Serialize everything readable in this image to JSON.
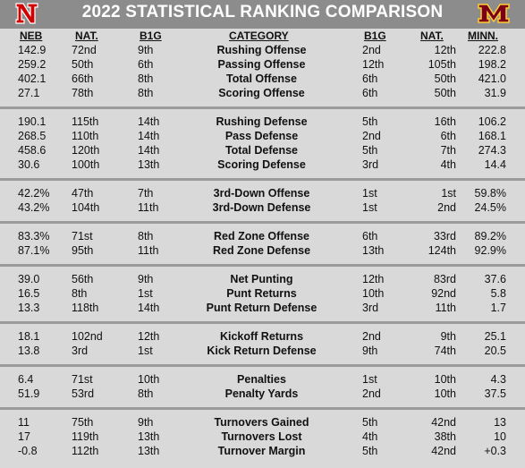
{
  "title": "2022 STATISTICAL RANKING COMPARISON",
  "logos": {
    "left": "nebraska-n-logo",
    "right": "minnesota-m-logo"
  },
  "colors": {
    "header_bg": "#8c8c8c",
    "nebraska_red": "#d00000",
    "minnesota_maroon": "#7a0019",
    "minnesota_gold": "#ffcc33",
    "body_bg": "#d9d9d9",
    "separator": "#9a9a9a"
  },
  "columns": {
    "neb": "NEB",
    "neb_nat": "NAT.",
    "neb_b1g": "B1G",
    "category": "CATEGORY",
    "minn_b1g": "B1G",
    "minn_nat": "NAT.",
    "minn": "MINN."
  },
  "groups": [
    {
      "rows": [
        {
          "neb": "142.9",
          "neb_nat": "72nd",
          "neb_b1g": "9th",
          "category": "Rushing Offense",
          "minn_b1g": "2nd",
          "minn_nat": "12th",
          "minn": "222.8"
        },
        {
          "neb": "259.2",
          "neb_nat": "50th",
          "neb_b1g": "6th",
          "category": "Passing Offense",
          "minn_b1g": "12th",
          "minn_nat": "105th",
          "minn": "198.2"
        },
        {
          "neb": "402.1",
          "neb_nat": "66th",
          "neb_b1g": "8th",
          "category": "Total Offense",
          "minn_b1g": "6th",
          "minn_nat": "50th",
          "minn": "421.0"
        },
        {
          "neb": "27.1",
          "neb_nat": "78th",
          "neb_b1g": "8th",
          "category": "Scoring Offense",
          "minn_b1g": "6th",
          "minn_nat": "50th",
          "minn": "31.9"
        }
      ]
    },
    {
      "rows": [
        {
          "neb": "190.1",
          "neb_nat": "115th",
          "neb_b1g": "14th",
          "category": "Rushing Defense",
          "minn_b1g": "5th",
          "minn_nat": "16th",
          "minn": "106.2"
        },
        {
          "neb": "268.5",
          "neb_nat": "110th",
          "neb_b1g": "14th",
          "category": "Pass Defense",
          "minn_b1g": "2nd",
          "minn_nat": "6th",
          "minn": "168.1"
        },
        {
          "neb": "458.6",
          "neb_nat": "120th",
          "neb_b1g": "14th",
          "category": "Total Defense",
          "minn_b1g": "5th",
          "minn_nat": "7th",
          "minn": "274.3"
        },
        {
          "neb": "30.6",
          "neb_nat": "100th",
          "neb_b1g": "13th",
          "category": "Scoring Defense",
          "minn_b1g": "3rd",
          "minn_nat": "4th",
          "minn": "14.4"
        }
      ]
    },
    {
      "rows": [
        {
          "neb": "42.2%",
          "neb_nat": "47th",
          "neb_b1g": "7th",
          "category": "3rd-Down Offense",
          "minn_b1g": "1st",
          "minn_nat": "1st",
          "minn": "59.8%"
        },
        {
          "neb": "43.2%",
          "neb_nat": "104th",
          "neb_b1g": "11th",
          "category": "3rd-Down Defense",
          "minn_b1g": "1st",
          "minn_nat": "2nd",
          "minn": "24.5%"
        }
      ]
    },
    {
      "rows": [
        {
          "neb": "83.3%",
          "neb_nat": "71st",
          "neb_b1g": "8th",
          "category": "Red Zone Offense",
          "minn_b1g": "6th",
          "minn_nat": "33rd",
          "minn": "89.2%"
        },
        {
          "neb": "87.1%",
          "neb_nat": "95th",
          "neb_b1g": "11th",
          "category": "Red Zone Defense",
          "minn_b1g": "13th",
          "minn_nat": "124th",
          "minn": "92.9%"
        }
      ]
    },
    {
      "rows": [
        {
          "neb": "39.0",
          "neb_nat": "56th",
          "neb_b1g": "9th",
          "category": "Net Punting",
          "minn_b1g": "12th",
          "minn_nat": "83rd",
          "minn": "37.6"
        },
        {
          "neb": "16.5",
          "neb_nat": "8th",
          "neb_b1g": "1st",
          "category": "Punt Returns",
          "minn_b1g": "10th",
          "minn_nat": "92nd",
          "minn": "5.8"
        },
        {
          "neb": "13.3",
          "neb_nat": "118th",
          "neb_b1g": "14th",
          "category": "Punt Return Defense",
          "minn_b1g": "3rd",
          "minn_nat": "11th",
          "minn": "1.7"
        }
      ]
    },
    {
      "rows": [
        {
          "neb": "18.1",
          "neb_nat": "102nd",
          "neb_b1g": "12th",
          "category": "Kickoff Returns",
          "minn_b1g": "2nd",
          "minn_nat": "9th",
          "minn": "25.1"
        },
        {
          "neb": "13.8",
          "neb_nat": "3rd",
          "neb_b1g": "1st",
          "category": "Kick Return Defense",
          "minn_b1g": "9th",
          "minn_nat": "74th",
          "minn": "20.5"
        }
      ]
    },
    {
      "rows": [
        {
          "neb": "6.4",
          "neb_nat": "71st",
          "neb_b1g": "10th",
          "category": "Penalties",
          "minn_b1g": "1st",
          "minn_nat": "10th",
          "minn": "4.3"
        },
        {
          "neb": "51.9",
          "neb_nat": "53rd",
          "neb_b1g": "8th",
          "category": "Penalty Yards",
          "minn_b1g": "2nd",
          "minn_nat": "10th",
          "minn": "37.5"
        }
      ]
    },
    {
      "rows": [
        {
          "neb": "11",
          "neb_nat": "75th",
          "neb_b1g": "9th",
          "category": "Turnovers Gained",
          "minn_b1g": "5th",
          "minn_nat": "42nd",
          "minn": "13"
        },
        {
          "neb": "17",
          "neb_nat": "119th",
          "neb_b1g": "13th",
          "category": "Turnovers Lost",
          "minn_b1g": "4th",
          "minn_nat": "38th",
          "minn": "10"
        },
        {
          "neb": "-0.8",
          "neb_nat": "112th",
          "neb_b1g": "13th",
          "category": "Turnover Margin",
          "minn_b1g": "5th",
          "minn_nat": "42nd",
          "minn": "+0.3"
        }
      ]
    }
  ]
}
